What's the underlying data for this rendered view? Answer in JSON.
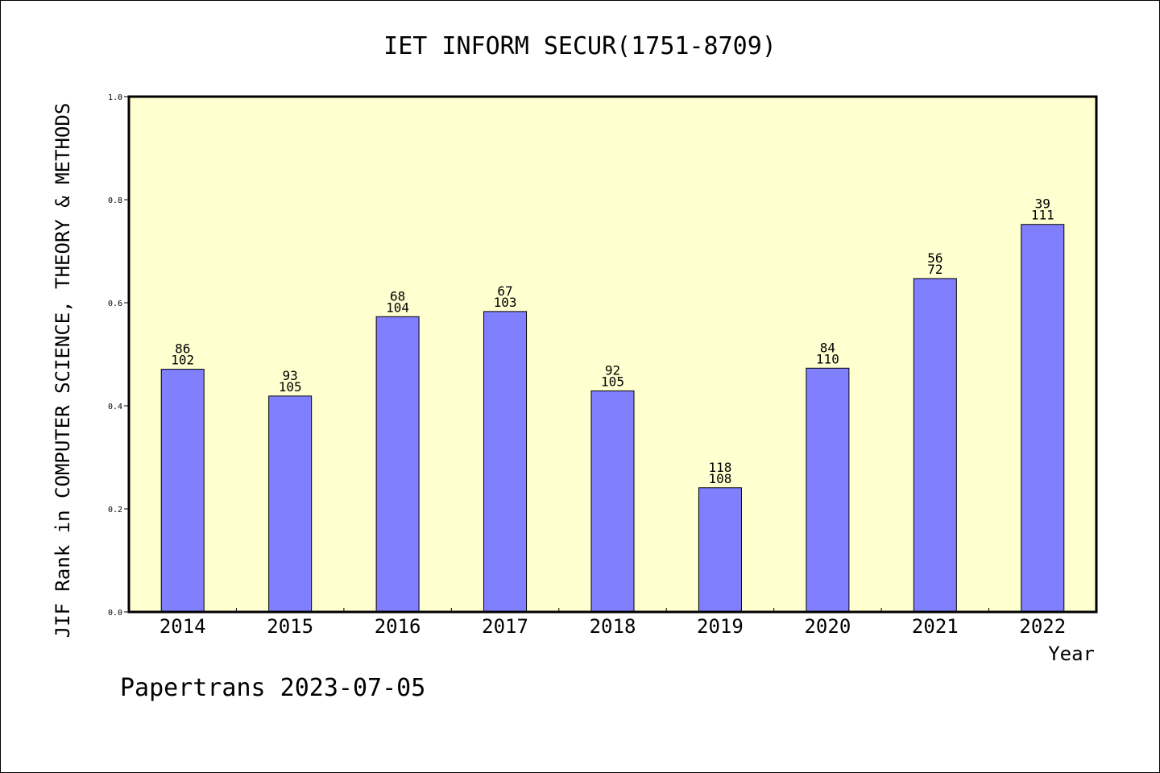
{
  "chart_data": {
    "type": "bar",
    "title": "IET INFORM SECUR(1751-8709)",
    "xlabel": "Year",
    "ylabel": "JIF Rank in COMPUTER SCIENCE, THEORY & METHODS",
    "ylim": [
      0,
      1.0
    ],
    "yticks": [
      "0.0",
      "0.2",
      "0.4",
      "0.6",
      "0.8",
      "1.0"
    ],
    "categories": [
      "2014",
      "2015",
      "2016",
      "2017",
      "2018",
      "2019",
      "2020",
      "2021",
      "2022"
    ],
    "values": [
      0.471,
      0.419,
      0.573,
      0.583,
      0.429,
      0.241,
      0.473,
      0.647,
      0.752
    ],
    "labels_top": [
      "86",
      "93",
      "68",
      "67",
      "92",
      "118",
      "84",
      "56",
      "39"
    ],
    "labels_bottom": [
      "102",
      "105",
      "104",
      "103",
      "105",
      "108",
      "110",
      "72",
      "111"
    ],
    "plot_background": "#ffffd0",
    "bar_color": "#8080ff",
    "grid": false
  },
  "footer": "Papertrans 2023-07-05"
}
